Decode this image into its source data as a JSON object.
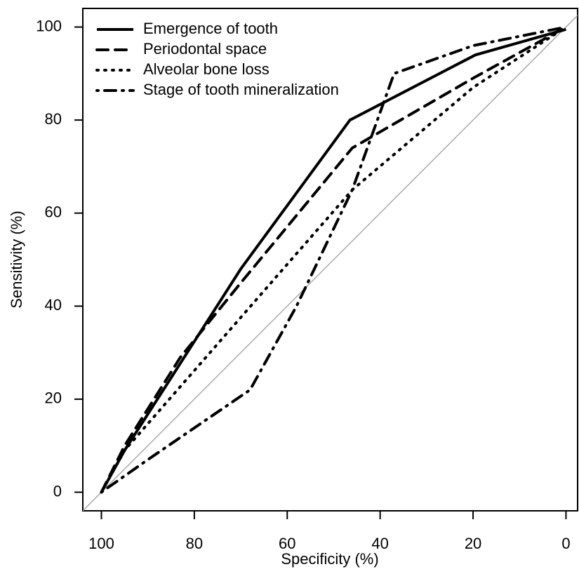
{
  "chart_data": {
    "type": "line",
    "x_label": "Specificity (%)",
    "y_label": "Sensitivity (%)",
    "xlim": [
      104,
      -2.5
    ],
    "ylim": [
      -4,
      104
    ],
    "xticks": [
      100,
      80,
      60,
      40,
      20,
      0
    ],
    "yticks": [
      0,
      20,
      40,
      60,
      80,
      100
    ],
    "legend": "top-left",
    "series": [
      {
        "name": "Emergence of tooth",
        "color": "#000000",
        "linestyle": "solid",
        "x": [
          100,
          95,
          70,
          46.5,
          19.5,
          0
        ],
        "values": [
          0,
          9,
          48,
          80,
          94,
          99.5
        ]
      },
      {
        "name": "Periodontal space",
        "color": "#000000",
        "linestyle": "dashed",
        "x": [
          100,
          95,
          83,
          70,
          46,
          20,
          0
        ],
        "values": [
          0,
          10,
          29,
          45,
          74,
          89,
          100
        ]
      },
      {
        "name": "Alveolar bone loss",
        "color": "#000000",
        "linestyle": "dotted",
        "x": [
          100,
          95,
          46,
          20,
          0
        ],
        "values": [
          0,
          9,
          65,
          87,
          100
        ]
      },
      {
        "name": "Stage of tooth mineralization",
        "color": "#000000",
        "linestyle": "dotdash",
        "x": [
          100,
          90,
          68,
          58,
          46,
          37,
          20,
          0
        ],
        "values": [
          0,
          7,
          22,
          40,
          65,
          90,
          96,
          100
        ]
      }
    ]
  }
}
